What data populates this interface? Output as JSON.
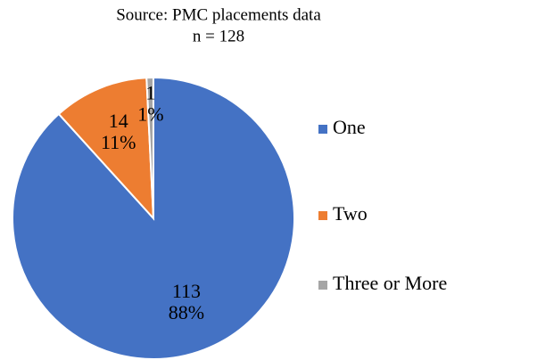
{
  "chart_data": {
    "type": "pie",
    "title": "Source: PMC placements data",
    "subtitle": "n = 128",
    "categories": [
      "One",
      "Two",
      "Three or More"
    ],
    "values": [
      113,
      14,
      1
    ],
    "percent_labels": [
      "88%",
      "11%",
      "1%"
    ],
    "colors": [
      "#4472c4",
      "#ed7d31",
      "#a5a5a5"
    ],
    "legend": "right"
  }
}
